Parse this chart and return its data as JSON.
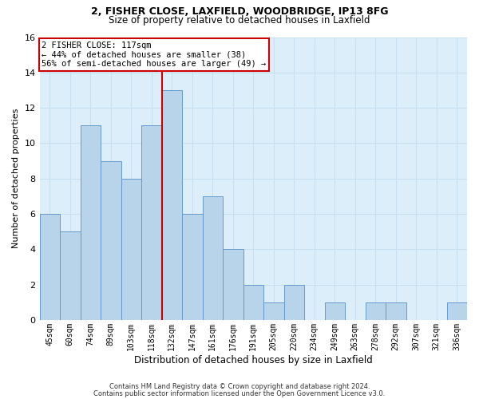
{
  "title1": "2, FISHER CLOSE, LAXFIELD, WOODBRIDGE, IP13 8FG",
  "title2": "Size of property relative to detached houses in Laxfield",
  "xlabel": "Distribution of detached houses by size in Laxfield",
  "ylabel": "Number of detached properties",
  "categories": [
    "45sqm",
    "60sqm",
    "74sqm",
    "89sqm",
    "103sqm",
    "118sqm",
    "132sqm",
    "147sqm",
    "161sqm",
    "176sqm",
    "191sqm",
    "205sqm",
    "220sqm",
    "234sqm",
    "249sqm",
    "263sqm",
    "278sqm",
    "292sqm",
    "307sqm",
    "321sqm",
    "336sqm"
  ],
  "values": [
    6,
    5,
    11,
    9,
    8,
    11,
    13,
    6,
    7,
    4,
    2,
    1,
    2,
    0,
    1,
    0,
    1,
    1,
    0,
    0,
    1
  ],
  "bar_color": "#b8d4ea",
  "bar_edge_color": "#6699cc",
  "grid_color": "#c8dff0",
  "background_color": "#dceef9",
  "vline_x_idx": 5.5,
  "annotation_lines": [
    "2 FISHER CLOSE: 117sqm",
    "← 44% of detached houses are smaller (38)",
    "56% of semi-detached houses are larger (49) →"
  ],
  "annotation_box_color": "#ffffff",
  "annotation_box_edge": "#cc0000",
  "vline_color": "#cc0000",
  "ylim": [
    0,
    16
  ],
  "yticks": [
    0,
    2,
    4,
    6,
    8,
    10,
    12,
    14,
    16
  ],
  "footer1": "Contains HM Land Registry data © Crown copyright and database right 2024.",
  "footer2": "Contains public sector information licensed under the Open Government Licence v3.0.",
  "title1_fontsize": 9,
  "title2_fontsize": 8.5,
  "ylabel_fontsize": 8,
  "xlabel_fontsize": 8.5,
  "tick_fontsize": 7,
  "footer_fontsize": 6,
  "ann_fontsize": 7.5
}
